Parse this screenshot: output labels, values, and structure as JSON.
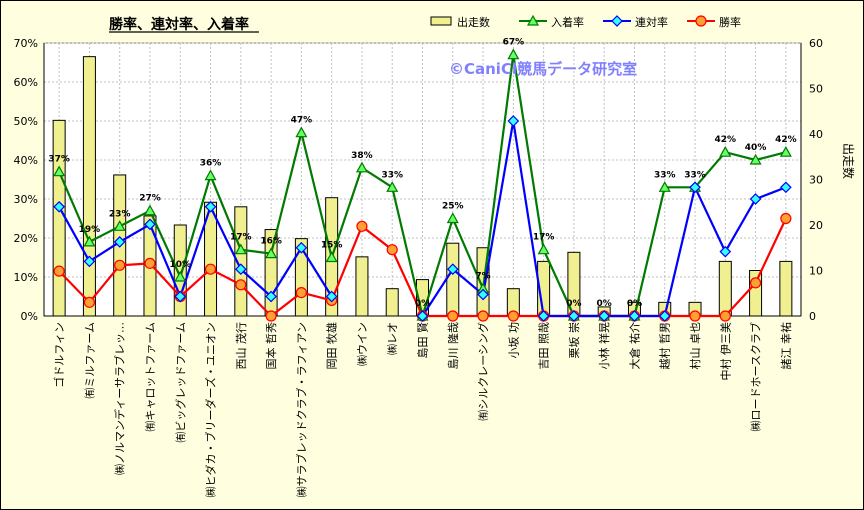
{
  "chart_data": {
    "type": "bar+line",
    "title": "勝率、連対率、入着率",
    "watermark": "©CaniCl競馬データ研究室",
    "y_left_label": "",
    "y_right_label": "出走数",
    "ylim_left": [
      0,
      70
    ],
    "ylim_right": [
      0,
      60
    ],
    "y_left_ticks": [
      "0%",
      "10%",
      "20%",
      "30%",
      "40%",
      "50%",
      "60%",
      "70%"
    ],
    "y_right_ticks": [
      "0",
      "10",
      "20",
      "30",
      "40",
      "50",
      "60"
    ],
    "grid": true,
    "legend_position": "top-right",
    "categories": [
      "ゴドルフィン",
      "㈲ミルファーム",
      "㈱ノルマンディーサラブレッ…",
      "㈲キャロットファーム",
      "㈲ビッグレッドファーム",
      "㈱ヒダカ・ブリーダーズ・ユニオン",
      "西山 茂行",
      "国本 哲秀",
      "㈱サラブレッドクラブ・ラフィアン",
      "岡田 牧雄",
      "㈱ウイン",
      "㈱レオ",
      "島田 賢",
      "島川 隆哉",
      "㈲シルクレーシング",
      "小坂 功",
      "吉田 照哉",
      "栗坂 崇",
      "小林 祥晃",
      "大倉 祐介",
      "越村 哲男",
      "村山 卓也",
      "中村 伊三美",
      "㈱ロードホースクラブ",
      "諸江 幸祐"
    ],
    "series": [
      {
        "name": "出走数",
        "kind": "bar",
        "axis": "right",
        "color": "#f0f090",
        "values": [
          43,
          57,
          31,
          22,
          20,
          25,
          24,
          19,
          17,
          26,
          13,
          6,
          8,
          16,
          15,
          6,
          12,
          14,
          2,
          3,
          3,
          3,
          12,
          10,
          12
        ]
      },
      {
        "name": "入着率",
        "kind": "line",
        "axis": "left",
        "color": "#007a00",
        "marker": "triangle",
        "values": [
          37,
          19,
          23,
          27,
          10,
          36,
          17,
          16,
          47,
          15,
          38,
          33,
          0,
          25,
          7,
          67,
          17,
          0,
          0,
          0,
          33,
          33,
          42,
          40,
          42
        ]
      },
      {
        "name": "連対率",
        "kind": "line",
        "axis": "left",
        "color": "#0000ff",
        "marker": "diamond",
        "values": [
          28,
          14,
          19,
          23.5,
          5,
          28,
          12,
          5,
          17.5,
          5,
          null,
          null,
          0,
          12,
          5.5,
          50,
          0,
          0,
          0,
          0,
          0,
          33,
          16.5,
          30,
          33
        ]
      },
      {
        "name": "勝率",
        "kind": "line",
        "axis": "left",
        "color": "#ff0000",
        "marker": "circle",
        "values": [
          11.5,
          3.5,
          13,
          13.5,
          5,
          12,
          8,
          0,
          6,
          4,
          23,
          17,
          0,
          0,
          0,
          0,
          0,
          0,
          0,
          0,
          0,
          0,
          0,
          8.5,
          25
        ]
      }
    ],
    "broken_blue_segments": [
      [
        9,
        12
      ]
    ],
    "data_labels": [
      {
        "index": 0,
        "text": "37%"
      },
      {
        "index": 1,
        "text": "19%"
      },
      {
        "index": 2,
        "text": "23%"
      },
      {
        "index": 3,
        "text": "27%"
      },
      {
        "index": 4,
        "text": "10%"
      },
      {
        "index": 5,
        "text": "36%"
      },
      {
        "index": 6,
        "text": "17%"
      },
      {
        "index": 7,
        "text": "16%"
      },
      {
        "index": 8,
        "text": "47%"
      },
      {
        "index": 9,
        "text": "15%"
      },
      {
        "index": 10,
        "text": "38%"
      },
      {
        "index": 11,
        "text": "33%"
      },
      {
        "index": 12,
        "text": "0%"
      },
      {
        "index": 13,
        "text": "25%"
      },
      {
        "index": 14,
        "text": "7%"
      },
      {
        "index": 15,
        "text": "67%"
      },
      {
        "index": 16,
        "text": "17%"
      },
      {
        "index": 17,
        "text": "0%"
      },
      {
        "index": 18,
        "text": "0%"
      },
      {
        "index": 19,
        "text": "0%"
      },
      {
        "index": 20,
        "text": "33%"
      },
      {
        "index": 21,
        "text": "33%"
      },
      {
        "index": 22,
        "text": "42%"
      },
      {
        "index": 23,
        "text": "40%"
      },
      {
        "index": 24,
        "text": "42%"
      }
    ]
  }
}
